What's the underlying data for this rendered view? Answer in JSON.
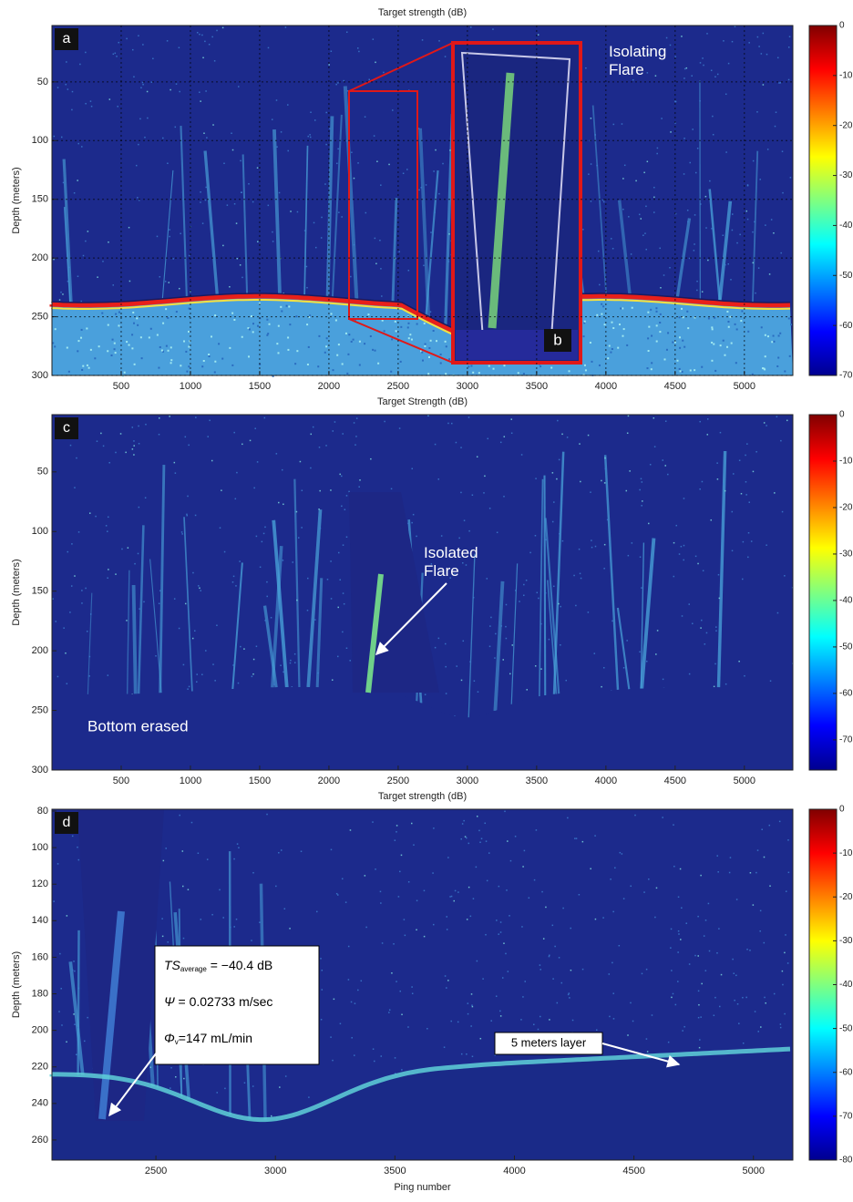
{
  "chart_data": [
    {
      "type": "heatmap",
      "panel": "a",
      "title": "Target strength (dB)",
      "ylabel": "Depth (meters)",
      "xlim": [
        0,
        5350
      ],
      "ylim": [
        2,
        300
      ],
      "y_inverted": true,
      "xticks": [
        500,
        1000,
        1500,
        2000,
        2500,
        3000,
        3500,
        4000,
        4500,
        5000
      ],
      "yticks": [
        50,
        100,
        150,
        200,
        250,
        300
      ],
      "grid": true,
      "colorbar": {
        "clim": [
          -70,
          0
        ],
        "ticks": [
          0,
          -10,
          -20,
          -30,
          -40,
          -50,
          -60,
          -70
        ]
      },
      "annotations": [
        "Isolating\nFlare",
        "b"
      ]
    },
    {
      "type": "heatmap",
      "panel": "c",
      "title": "Target Strength (dB)",
      "ylabel": "Depth (meters)",
      "xlim": [
        0,
        5350
      ],
      "ylim": [
        2,
        300
      ],
      "y_inverted": true,
      "xticks": [
        500,
        1000,
        1500,
        2000,
        2500,
        3000,
        3500,
        4000,
        4500,
        5000
      ],
      "yticks": [
        50,
        100,
        150,
        200,
        250,
        300
      ],
      "grid": false,
      "colorbar": {
        "clim": [
          -76.5,
          0
        ],
        "ticks": [
          0,
          -10,
          -20,
          -30,
          -40,
          -50,
          -60,
          -70
        ]
      },
      "annotations": [
        "Isolated\nFlare",
        "Bottom erased"
      ]
    },
    {
      "type": "heatmap",
      "panel": "d",
      "title": "Target strength (dB)",
      "ylabel": "Depth (meters)",
      "xlabel": "Ping number",
      "xlim": [
        2065,
        5165
      ],
      "ylim": [
        79,
        271
      ],
      "y_inverted": true,
      "xticks": [
        2500,
        3000,
        3500,
        4000,
        4500,
        5000
      ],
      "yticks": [
        80,
        100,
        120,
        140,
        160,
        180,
        200,
        220,
        240,
        260
      ],
      "grid": false,
      "colorbar": {
        "clim": [
          -80,
          0
        ],
        "ticks": [
          0,
          -10,
          -20,
          -30,
          -40,
          -50,
          -60,
          -70,
          -80
        ]
      },
      "stats": [
        {
          "symbol": "TS",
          "sub": "average",
          "text": " = −40.4 dB"
        },
        {
          "symbol": "Ψ",
          "text": " = 0.02733 m/sec"
        },
        {
          "symbol": "Φ",
          "sub": "v",
          "text": "=147 mL/min"
        }
      ],
      "annotations": [
        "5 meters layer"
      ]
    }
  ]
}
